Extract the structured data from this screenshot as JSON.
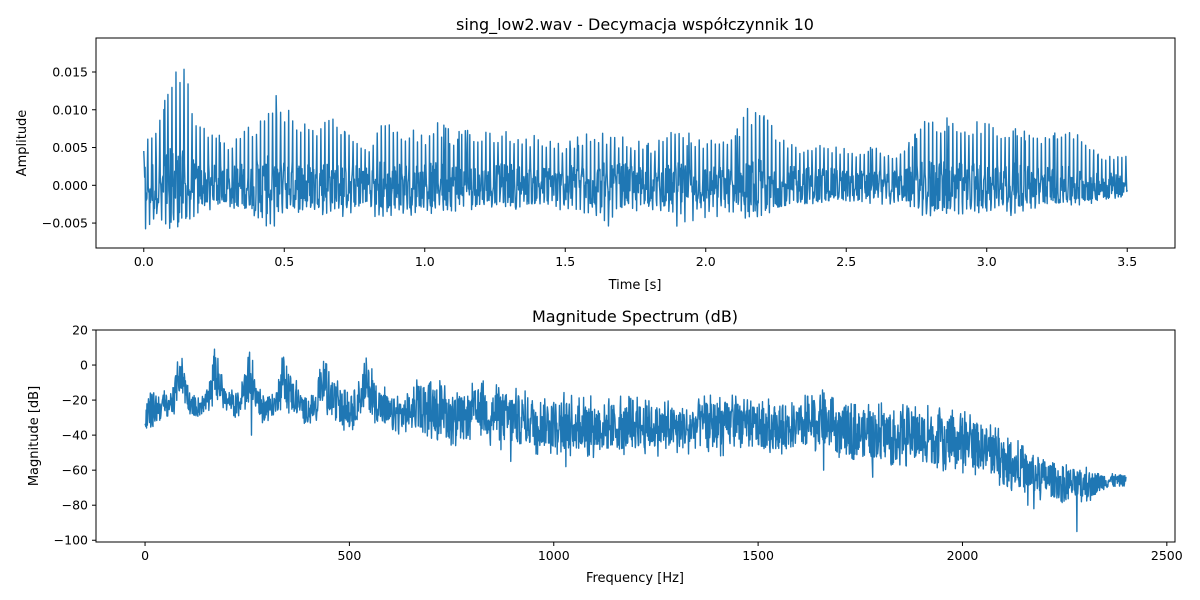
{
  "colors": {
    "line": "#1f77b4",
    "axes": "#000000",
    "background": "#ffffff"
  },
  "chart_data": [
    {
      "type": "line",
      "title": "sing_low2.wav - Decymacja współczynnik 10",
      "xlabel": "Time [s]",
      "ylabel": "Amplitude",
      "xlim": [
        -0.17,
        3.67
      ],
      "ylim": [
        -0.0083,
        0.0195
      ],
      "xticks": [
        0.0,
        0.5,
        1.0,
        1.5,
        2.0,
        2.5,
        3.0,
        3.5
      ],
      "xtick_labels": [
        "0.0",
        "0.5",
        "1.0",
        "1.5",
        "2.0",
        "2.5",
        "3.0",
        "3.5"
      ],
      "yticks": [
        -0.005,
        0.0,
        0.005,
        0.01,
        0.015
      ],
      "ytick_labels": [
        "−0.005",
        "0.000",
        "0.005",
        "0.010",
        "0.015"
      ],
      "grid": false,
      "series": [
        {
          "color": "#1f77b4",
          "x": [
            0.0,
            0.05,
            0.1,
            0.12,
            0.15,
            0.2,
            0.3,
            0.4,
            0.45,
            0.5,
            0.6,
            0.65,
            0.7,
            0.8,
            0.85,
            0.9,
            1.0,
            1.05,
            1.1,
            1.2,
            1.3,
            1.4,
            1.5,
            1.6,
            1.65,
            1.7,
            1.8,
            1.9,
            2.0,
            2.1,
            2.15,
            2.2,
            2.25,
            2.3,
            2.4,
            2.5,
            2.6,
            2.7,
            2.8,
            2.85,
            2.9,
            3.0,
            3.1,
            3.2,
            3.3,
            3.4,
            3.5
          ],
          "upper": [
            0.0055,
            0.0085,
            0.014,
            0.018,
            0.016,
            0.008,
            0.006,
            0.0085,
            0.0125,
            0.011,
            0.008,
            0.01,
            0.0075,
            0.005,
            0.0085,
            0.008,
            0.007,
            0.0085,
            0.007,
            0.0075,
            0.0075,
            0.0065,
            0.0055,
            0.0075,
            0.007,
            0.0065,
            0.0055,
            0.0075,
            0.006,
            0.0065,
            0.0105,
            0.0095,
            0.0075,
            0.0055,
            0.0055,
            0.005,
            0.005,
            0.0045,
            0.0095,
            0.009,
            0.0085,
            0.0085,
            0.0075,
            0.0065,
            0.0075,
            0.004,
            0.004
          ],
          "lower": [
            -0.0065,
            -0.004,
            -0.0065,
            -0.007,
            -0.005,
            -0.0035,
            -0.003,
            -0.0045,
            -0.006,
            -0.004,
            -0.004,
            -0.006,
            -0.0045,
            -0.003,
            -0.006,
            -0.004,
            -0.004,
            -0.004,
            -0.0045,
            -0.003,
            -0.0035,
            -0.003,
            -0.0035,
            -0.0045,
            -0.0055,
            -0.004,
            -0.003,
            -0.0055,
            -0.0045,
            -0.004,
            -0.005,
            -0.004,
            -0.0035,
            -0.0025,
            -0.0025,
            -0.0025,
            -0.0025,
            -0.003,
            -0.0045,
            -0.004,
            -0.004,
            -0.004,
            -0.004,
            -0.003,
            -0.0035,
            -0.002,
            -0.001
          ],
          "core": [
            0.003,
            0.004,
            0.005,
            0.005,
            0.0045,
            0.003,
            0.0025,
            0.0035,
            0.004,
            0.0035,
            0.003,
            0.0035,
            0.003,
            0.0025,
            0.0035,
            0.003,
            0.003,
            0.003,
            0.003,
            0.0025,
            0.003,
            0.0025,
            0.0025,
            0.003,
            0.003,
            0.003,
            0.0025,
            0.003,
            0.0025,
            0.0025,
            0.0035,
            0.0035,
            0.003,
            0.0025,
            0.0025,
            0.002,
            0.002,
            0.002,
            0.0035,
            0.0035,
            0.003,
            0.003,
            0.003,
            0.0025,
            0.0025,
            0.002,
            0.0015
          ]
        }
      ]
    },
    {
      "type": "line",
      "title": "Magnitude Spectrum (dB)",
      "xlabel": "Frequency [Hz]",
      "ylabel": "Magnitude [dB]",
      "xlim": [
        -120,
        2520
      ],
      "ylim": [
        -101,
        20
      ],
      "xticks": [
        0,
        500,
        1000,
        1500,
        2000,
        2500
      ],
      "xtick_labels": [
        "0",
        "500",
        "1000",
        "1500",
        "2000",
        "2500"
      ],
      "yticks": [
        -100,
        -80,
        -60,
        -40,
        -20,
        0,
        20
      ],
      "ytick_labels": [
        "−100",
        "−80",
        "−60",
        "−40",
        "−20",
        "0",
        "20"
      ],
      "grid": false,
      "series": [
        {
          "color": "#1f77b4",
          "x": [
            0,
            10,
            30,
            50,
            70,
            85,
            95,
            110,
            130,
            150,
            170,
            180,
            200,
            230,
            255,
            270,
            290,
            320,
            340,
            360,
            390,
            420,
            430,
            460,
            500,
            510,
            540,
            570,
            600,
            640,
            680,
            700,
            740,
            780,
            800,
            840,
            860,
            900,
            1000,
            1100,
            1200,
            1300,
            1400,
            1500,
            1600,
            1650,
            1700,
            1800,
            1900,
            1950,
            2000,
            2050,
            2100,
            2150,
            2200,
            2250,
            2300,
            2350,
            2400
          ],
          "upper": [
            -22,
            -12,
            -12,
            -15,
            -10,
            15,
            5,
            -14,
            -16,
            -14,
            10,
            5,
            -14,
            -14,
            13,
            -5,
            -16,
            -14,
            11,
            -5,
            -16,
            -14,
            7,
            -6,
            -16,
            -12,
            5,
            -8,
            -16,
            -14,
            -5,
            -4,
            -12,
            -14,
            -10,
            -8,
            -10,
            -12,
            -15,
            -17,
            -18,
            -20,
            -16,
            -18,
            -19,
            -12,
            -22,
            -21,
            -22,
            -24,
            -25,
            -30,
            -35,
            -46,
            -50,
            -55,
            -58,
            -60,
            -62
          ],
          "lower": [
            -45,
            -42,
            -36,
            -32,
            -30,
            -20,
            -25,
            -30,
            -32,
            -28,
            -22,
            -24,
            -30,
            -32,
            -22,
            -28,
            -34,
            -30,
            -24,
            -30,
            -36,
            -32,
            -26,
            -34,
            -40,
            -38,
            -28,
            -36,
            -42,
            -42,
            -40,
            -42,
            -46,
            -48,
            -44,
            -46,
            -48,
            -50,
            -52,
            -54,
            -52,
            -52,
            -52,
            -52,
            -52,
            -50,
            -55,
            -58,
            -60,
            -62,
            -62,
            -64,
            -70,
            -74,
            -78,
            -80,
            -80,
            -72,
            -70
          ],
          "spikes_x": [
            260,
            895,
            1030,
            1660,
            1780,
            2160,
            2175,
            2280
          ],
          "spikes_y": [
            -40,
            -55,
            -58,
            -60,
            -64,
            -80,
            -82,
            -95
          ]
        }
      ]
    }
  ]
}
